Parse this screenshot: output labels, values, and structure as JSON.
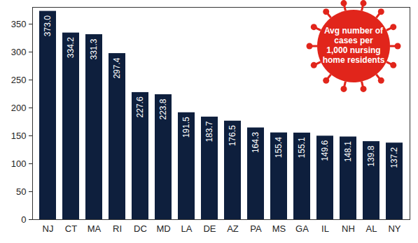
{
  "chart_data": {
    "type": "bar",
    "title": "Avg number of cases per 1,000 nursing home residents",
    "categories": [
      "NJ",
      "CT",
      "MA",
      "RI",
      "DC",
      "MD",
      "LA",
      "DE",
      "AZ",
      "PA",
      "MS",
      "GA",
      "IL",
      "NH",
      "AL",
      "NY"
    ],
    "values": [
      373.0,
      334.2,
      331.3,
      297.4,
      227.6,
      223.8,
      191.5,
      183.7,
      176.5,
      164.3,
      155.4,
      155.1,
      149.6,
      148.1,
      139.8,
      137.2
    ],
    "value_labels": [
      "373.0",
      "334.2",
      "331.3",
      "297.4",
      "227.6",
      "223.8",
      "191.5",
      "183.7",
      "176.5",
      "164.3",
      "155.4",
      "155.1",
      "149.6",
      "148.1",
      "139.8",
      "137.2"
    ],
    "color": "#0e1f3d",
    "ylim": [
      0,
      380
    ],
    "yticks": [
      0,
      50,
      100,
      150,
      200,
      250,
      300,
      350
    ],
    "data_labels": true,
    "grid": false
  }
}
